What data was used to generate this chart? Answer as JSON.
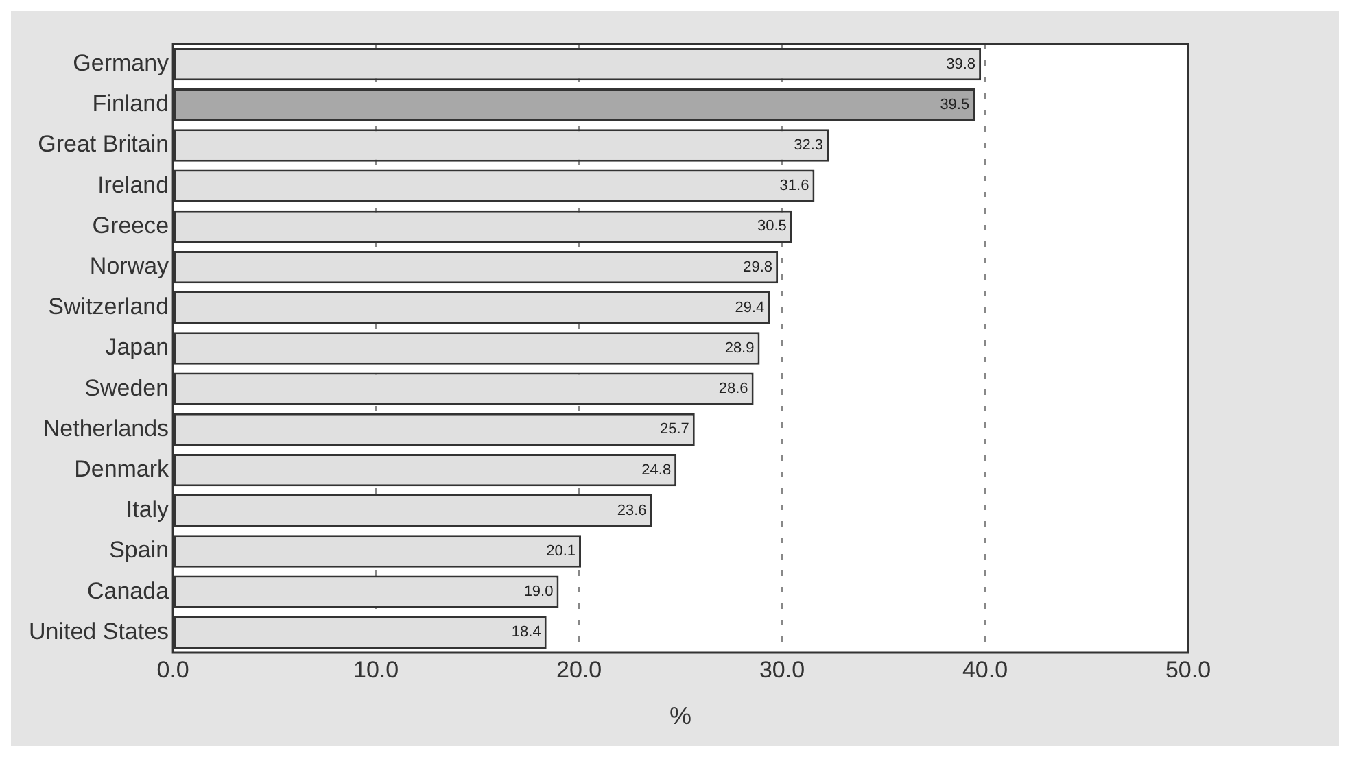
{
  "chart_data": {
    "type": "bar",
    "orientation": "horizontal",
    "xlabel": "%",
    "categories": [
      "Germany",
      "Finland",
      "Great Britain",
      "Ireland",
      "Greece",
      "Norway",
      "Switzerland",
      "Japan",
      "Sweden",
      "Netherlands",
      "Denmark",
      "Italy",
      "Spain",
      "Canada",
      "United States"
    ],
    "values": [
      39.8,
      39.5,
      32.3,
      31.6,
      30.5,
      29.8,
      29.4,
      28.9,
      28.6,
      25.7,
      24.8,
      23.6,
      20.1,
      19.0,
      18.4
    ],
    "colors": [
      "#e0e0e0",
      "#a8a8a8",
      "#e0e0e0",
      "#e0e0e0",
      "#e0e0e0",
      "#e0e0e0",
      "#e0e0e0",
      "#e0e0e0",
      "#e0e0e0",
      "#e0e0e0",
      "#e0e0e0",
      "#e0e0e0",
      "#e0e0e0",
      "#e0e0e0",
      "#e0e0e0"
    ],
    "xlim": [
      0,
      50
    ],
    "xticks": [
      {
        "value": 0,
        "label": "0.0"
      },
      {
        "value": 10,
        "label": "10.0"
      },
      {
        "value": 20,
        "label": "20.0"
      },
      {
        "value": 30,
        "label": "30.0"
      },
      {
        "value": 40,
        "label": "40.0"
      },
      {
        "value": 50,
        "label": "50.0"
      }
    ],
    "value_labels": [
      "39.8",
      "39.5",
      "32.3",
      "31.6",
      "30.5",
      "29.8",
      "29.4",
      "28.9",
      "28.6",
      "25.7",
      "24.8",
      "23.6",
      "20.1",
      "19.0",
      "18.4"
    ],
    "grid": "x",
    "legend": false
  }
}
